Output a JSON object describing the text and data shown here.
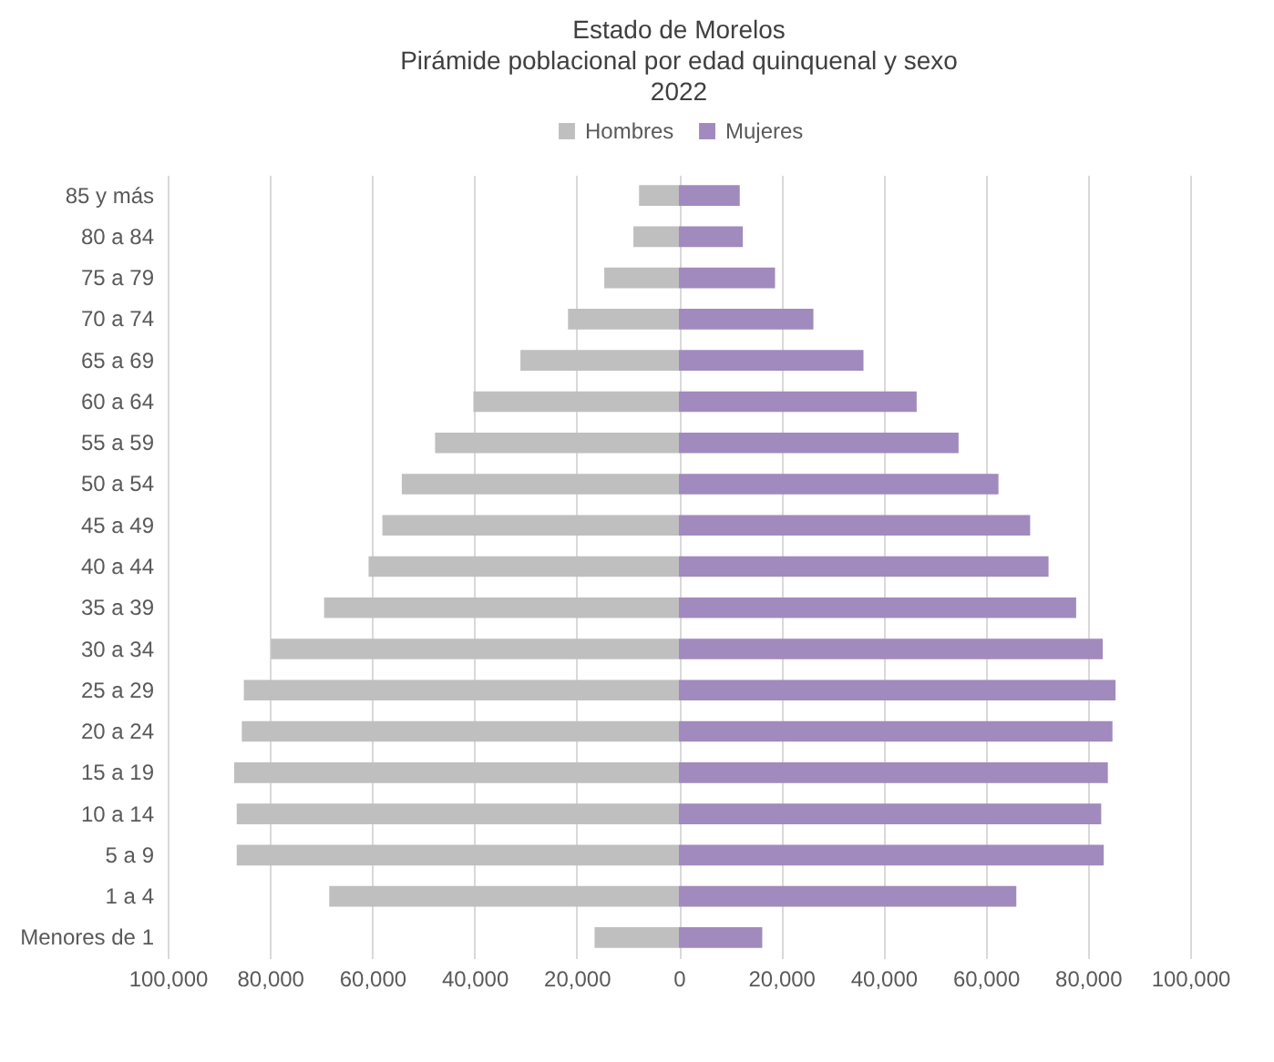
{
  "chart_data": {
    "type": "bar",
    "orientation": "horizontal",
    "title": "Estado de Morelos\nPirámide poblacional por edad quinquenal y sexo\n2022",
    "categories": [
      "85 y más",
      "80 a 84",
      "75 a 79",
      "70 a 74",
      "65 a 69",
      "60 a 64",
      "55 a 59",
      "50 a 54",
      "45 a 49",
      "40 a 44",
      "35 a 39",
      "30 a 34",
      "25 a 29",
      "20 a 24",
      "15 a 19",
      "10 a 14",
      "5 a 9",
      "1 a 4",
      "Menores de 1"
    ],
    "series": [
      {
        "name": "Hombres",
        "color": "#bfbfbf",
        "values": [
          -7800,
          -8900,
          -14600,
          -21700,
          -31000,
          -40200,
          -47700,
          -54200,
          -58000,
          -60700,
          -69400,
          -79800,
          -85100,
          -85500,
          -87000,
          -86500,
          -86500,
          -68400,
          -16500
        ]
      },
      {
        "name": "Mujeres",
        "color": "#a18abd",
        "values": [
          11900,
          12500,
          18800,
          26300,
          36100,
          46500,
          54700,
          62500,
          68700,
          72300,
          77700,
          82900,
          85400,
          84800,
          83900,
          82600,
          83100,
          66000,
          16300
        ]
      }
    ],
    "xlim": [
      -100000,
      100000
    ],
    "xticks": [
      {
        "value": -100000,
        "label": "100,000"
      },
      {
        "value": -80000,
        "label": "80,000"
      },
      {
        "value": -60000,
        "label": "60,000"
      },
      {
        "value": -40000,
        "label": "40,000"
      },
      {
        "value": -20000,
        "label": "20,000"
      },
      0,
      {
        "value": 20000,
        "label": "20,000"
      },
      {
        "value": 40000,
        "label": "40,000"
      },
      {
        "value": 60000,
        "label": "60,000"
      },
      {
        "value": 80000,
        "label": "80,000"
      },
      {
        "value": 100000,
        "label": "100,000"
      }
    ],
    "stacked": true,
    "grid": "x",
    "legend": "top"
  }
}
